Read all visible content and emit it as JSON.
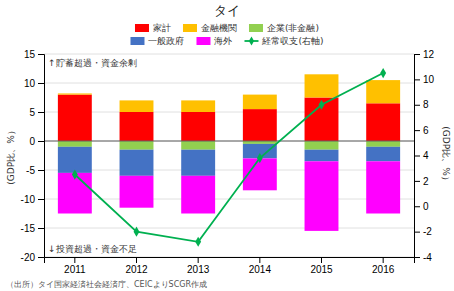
{
  "chart_data": {
    "type": "bar",
    "stacked": true,
    "title": "タイ",
    "categories": [
      "2011",
      "2012",
      "2013",
      "2014",
      "2015",
      "2016"
    ],
    "series": [
      {
        "name": "家計",
        "type": "bar",
        "color": "#FF0000",
        "values": [
          8.0,
          5.0,
          5.0,
          5.5,
          7.5,
          6.5
        ]
      },
      {
        "name": "金融機関",
        "type": "bar",
        "color": "#FFC000",
        "values": [
          0.2,
          2.0,
          2.0,
          2.5,
          4.0,
          4.0
        ]
      },
      {
        "name": "企業(非金融)",
        "type": "bar",
        "color": "#92D050",
        "values": [
          -1.0,
          -1.5,
          -1.5,
          -0.5,
          -1.5,
          -1.0
        ]
      },
      {
        "name": "一般政府",
        "type": "bar",
        "color": "#4472C4",
        "values": [
          -4.5,
          -4.5,
          -4.5,
          -2.5,
          -2.0,
          -2.5
        ]
      },
      {
        "name": "海外",
        "type": "bar",
        "color": "#FF00FF",
        "values": [
          -7.0,
          -5.5,
          -6.5,
          -5.5,
          -12.0,
          -9.0
        ]
      },
      {
        "name": "経常収支(右軸)",
        "type": "line",
        "axis": "y2",
        "color": "#00B050",
        "marker": "diamond",
        "values": [
          2.5,
          -2.0,
          -2.8,
          3.8,
          8.0,
          10.5
        ]
      }
    ],
    "ylim": [
      -20,
      15
    ],
    "yticks": [
      -20,
      -15,
      -10,
      -5,
      0,
      5,
      10,
      15
    ],
    "y2lim": [
      -4,
      12
    ],
    "y2ticks": [
      -4,
      -2,
      0,
      2,
      4,
      6,
      8,
      10,
      12
    ],
    "ylabel": "(GDP比、%）",
    "y2label": "(GDP比、%）",
    "annotations": [
      "↑貯蓄超過・資金余剰",
      "↓投資超過・資金不足"
    ],
    "source": "（出所）タイ国家経済社会経済庁、CEICよりSCGR作成",
    "grid": true,
    "legend": "top"
  }
}
